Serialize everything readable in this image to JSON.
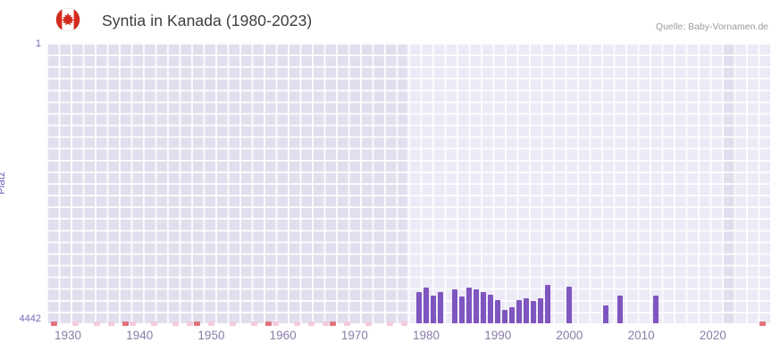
{
  "header": {
    "title": "Syntia in Kanada (1980-2023)",
    "flag_icon": "canada-flag-icon",
    "source": "Quelle: Baby-Vornamen.de"
  },
  "chart_data": {
    "type": "bar",
    "title": "Syntia in Kanada (1980-2023)",
    "xlabel": "",
    "ylabel": "Platz",
    "legend": "none",
    "grid": true,
    "y_axis": {
      "inverted": true,
      "min": 1,
      "max": 4442,
      "top_label": "1",
      "bottom_label": "4442"
    },
    "x_axis": {
      "min": 1927,
      "max": 2028,
      "ticks": [
        "1930",
        "1940",
        "1950",
        "1960",
        "1970",
        "1980",
        "1990",
        "2000",
        "2010",
        "2020"
      ]
    },
    "series": [
      {
        "name": "Platz",
        "color": "#7f56c0",
        "years": [
          1979,
          1980,
          1981,
          1982,
          1984,
          1985,
          1986,
          1987,
          1988,
          1989,
          1990,
          1991,
          1992,
          1993,
          1994,
          1995,
          1996,
          1997,
          2000,
          2005,
          2007,
          2012
        ],
        "ranks": [
          3940,
          3880,
          4000,
          3950,
          3910,
          4010,
          3870,
          3900,
          3950,
          3990,
          4080,
          4230,
          4180,
          4080,
          4040,
          4090,
          4040,
          3840,
          3860,
          4160,
          4000,
          4000
        ]
      }
    ],
    "axis_markers": {
      "red": {
        "color": "#e0737e",
        "years": [
          1928,
          1938,
          1948,
          1958,
          1967,
          2027
        ]
      },
      "pink": {
        "color": "#f3ccdc",
        "years": [
          1931,
          1934,
          1936,
          1939,
          1942,
          1945,
          1947,
          1950,
          1953,
          1956,
          1959,
          1962,
          1964,
          1966,
          1969,
          1972,
          1975,
          1977
        ]
      }
    },
    "background_bands": [
      {
        "from": 1977.3,
        "to": 2021.3,
        "color": "#edeaf7"
      },
      {
        "from": 2023.3,
        "to": 2028,
        "color": "#edeaf7"
      }
    ],
    "plot_background": "#e2deee"
  }
}
